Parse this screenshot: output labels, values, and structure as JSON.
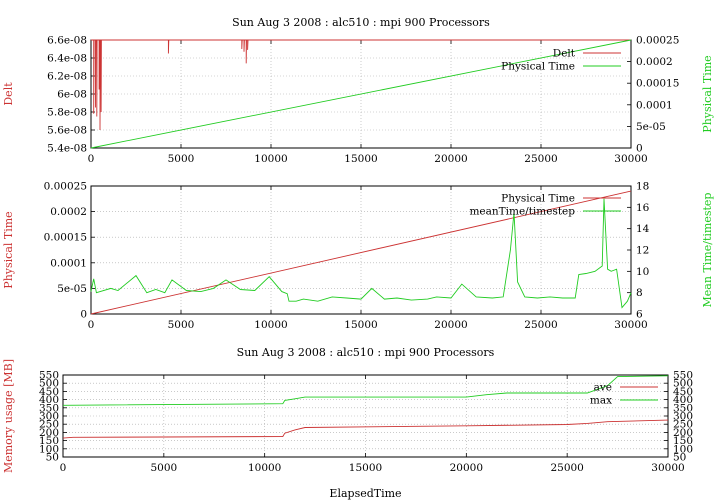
{
  "chart_data": [
    {
      "type": "line",
      "title": "Sun Aug 3 2008 : alc510 : mpi 900 Processors",
      "xlabel": "",
      "ylabel": "Delt",
      "y2label": "Physical Time",
      "xlim": [
        0,
        30000
      ],
      "ylim": [
        5.4e-08,
        6.6e-08
      ],
      "y2lim": [
        0,
        0.00025
      ],
      "xticks": [
        0,
        5000,
        10000,
        15000,
        20000,
        25000,
        30000
      ],
      "xtick_labels": [
        "0",
        "5000",
        "10000",
        "15000",
        "20000",
        "25000",
        "30000"
      ],
      "yticks": [
        5.4e-08,
        5.6e-08,
        5.8e-08,
        6e-08,
        6.2e-08,
        6.4e-08,
        6.6e-08
      ],
      "ytick_labels": [
        "5.4e-08",
        "5.6e-08",
        "5.8e-08",
        "6e-08",
        "6.2e-08",
        "6.4e-08",
        "6.6e-08"
      ],
      "y2ticks": [
        0,
        5e-05,
        0.0001,
        0.00015,
        0.0002,
        0.00025
      ],
      "y2tick_labels": [
        "0",
        "5e-05",
        "0.0001",
        "0.00015",
        "0.0002",
        "0.00025"
      ],
      "grid": true,
      "legend": "top-right",
      "series": [
        {
          "name": "Delt",
          "axis": "y",
          "color": "#cc3333",
          "x": [
            0,
            80,
            150,
            150,
            170,
            250,
            250,
            270,
            320,
            320,
            340,
            450,
            450,
            470,
            500,
            500,
            520,
            560,
            560,
            580,
            4300,
            4300,
            4320,
            8380,
            8380,
            8400,
            8500,
            8500,
            8520,
            8620,
            8620,
            8640,
            8700,
            8700,
            8720,
            30000
          ],
          "values": [
            6.6e-08,
            6.6e-08,
            6.6e-08,
            5.78e-08,
            6.6e-08,
            6.6e-08,
            5.85e-08,
            6.6e-08,
            6.6e-08,
            5.75e-08,
            6.6e-08,
            6.6e-08,
            6.05e-08,
            6.6e-08,
            6.6e-08,
            5.6e-08,
            6.6e-08,
            6.6e-08,
            5.8e-08,
            6.6e-08,
            6.6e-08,
            6.45e-08,
            6.6e-08,
            6.6e-08,
            6.5e-08,
            6.6e-08,
            6.6e-08,
            6.47e-08,
            6.6e-08,
            6.6e-08,
            6.34e-08,
            6.6e-08,
            6.6e-08,
            6.49e-08,
            6.6e-08,
            6.6e-08
          ]
        },
        {
          "name": "Physical Time",
          "axis": "y2",
          "color": "#22cc22",
          "x": [
            0,
            30000
          ],
          "values": [
            0,
            0.00025
          ]
        }
      ]
    },
    {
      "type": "line",
      "title": "",
      "xlabel": "",
      "ylabel": "Physical Time",
      "y2label": "Mean Time/timestep",
      "xlim": [
        0,
        30000
      ],
      "ylim": [
        0,
        0.00025
      ],
      "y2lim": [
        6,
        18
      ],
      "xticks": [
        0,
        5000,
        10000,
        15000,
        20000,
        25000,
        30000
      ],
      "xtick_labels": [
        "0",
        "5000",
        "10000",
        "15000",
        "20000",
        "25000",
        "30000"
      ],
      "yticks": [
        0,
        5e-05,
        0.0001,
        0.00015,
        0.0002,
        0.00025
      ],
      "ytick_labels": [
        "0",
        "5e-05",
        "0.0001",
        "0.00015",
        "0.0002",
        "0.00025"
      ],
      "y2ticks": [
        6,
        8,
        10,
        12,
        14,
        16,
        18
      ],
      "y2tick_labels": [
        "6",
        "8",
        "10",
        "12",
        "14",
        "16",
        "18"
      ],
      "grid": true,
      "legend": "top-right",
      "series": [
        {
          "name": "Physical Time",
          "axis": "y",
          "color": "#cc3333",
          "x": [
            0,
            30000
          ],
          "values": [
            0,
            0.00024
          ]
        },
        {
          "name": "meanTime/timestep",
          "axis": "y2",
          "color": "#22cc22",
          "x": [
            0,
            150,
            300,
            1100,
            1500,
            2500,
            3100,
            3600,
            4100,
            4500,
            5300,
            6100,
            6800,
            7500,
            8300,
            9100,
            9900,
            10600,
            10900,
            11000,
            11400,
            11800,
            12600,
            13400,
            14200,
            15000,
            15600,
            16300,
            17000,
            17800,
            18700,
            19200,
            20000,
            20600,
            21400,
            22300,
            22900,
            23300,
            23500,
            23700,
            24100,
            24800,
            25500,
            26200,
            26900,
            27100,
            27500,
            28000,
            28400,
            28500,
            28700,
            28900,
            29200,
            29500,
            29800,
            30000
          ],
          "values": [
            8.1,
            9.3,
            8.0,
            8.4,
            8.2,
            9.6,
            8.0,
            8.3,
            8.0,
            9.2,
            8.2,
            8.1,
            8.4,
            9.2,
            8.3,
            8.2,
            9.5,
            8.1,
            7.9,
            7.2,
            7.2,
            7.4,
            7.2,
            7.6,
            7.5,
            7.4,
            8.4,
            7.4,
            7.5,
            7.3,
            7.4,
            7.6,
            7.5,
            8.8,
            7.6,
            7.5,
            7.6,
            12.0,
            15.5,
            9.0,
            7.6,
            7.5,
            7.6,
            7.5,
            7.5,
            9.7,
            9.8,
            10.0,
            10.5,
            16.8,
            10.2,
            10.0,
            10.2,
            6.6,
            7.2,
            8.0
          ]
        }
      ]
    },
    {
      "type": "line",
      "title": "Sun Aug 3 2008 : alc510 : mpi 900 Processors",
      "xlabel": "ElapsedTime",
      "ylabel": "Memory usage [MB]",
      "y2label": "",
      "xlim": [
        0,
        30000
      ],
      "ylim": [
        50,
        550
      ],
      "y2lim": [
        50,
        550
      ],
      "xticks": [
        0,
        5000,
        10000,
        15000,
        20000,
        25000,
        30000
      ],
      "xtick_labels": [
        "0",
        "5000",
        "10000",
        "15000",
        "20000",
        "25000",
        "30000"
      ],
      "yticks": [
        50,
        100,
        150,
        200,
        250,
        300,
        350,
        400,
        450,
        500,
        550
      ],
      "ytick_labels": [
        "50",
        "100",
        "150",
        "200",
        "250",
        "300",
        "350",
        "400",
        "450",
        "500",
        "550"
      ],
      "y2ticks": [
        50,
        100,
        150,
        200,
        250,
        300,
        350,
        400,
        450,
        500,
        550
      ],
      "y2tick_labels": [
        "50",
        "100",
        "150",
        "200",
        "250",
        "300",
        "350",
        "400",
        "450",
        "500",
        "550"
      ],
      "grid": true,
      "legend": "top-right",
      "series": [
        {
          "name": "ave",
          "axis": "y",
          "color": "#cc3333",
          "x": [
            0,
            500,
            5000,
            10900,
            11000,
            11500,
            12000,
            20000,
            25000,
            26000,
            27000,
            30000
          ],
          "values": [
            165,
            170,
            172,
            175,
            195,
            215,
            230,
            240,
            248,
            255,
            265,
            275
          ]
        },
        {
          "name": "max",
          "axis": "y",
          "color": "#22cc22",
          "x": [
            0,
            10900,
            11000,
            11500,
            12000,
            20000,
            21000,
            22000,
            26000,
            27000,
            27500,
            30000
          ],
          "values": [
            365,
            375,
            395,
            405,
            415,
            415,
            430,
            440,
            440,
            485,
            540,
            545
          ]
        }
      ]
    }
  ]
}
